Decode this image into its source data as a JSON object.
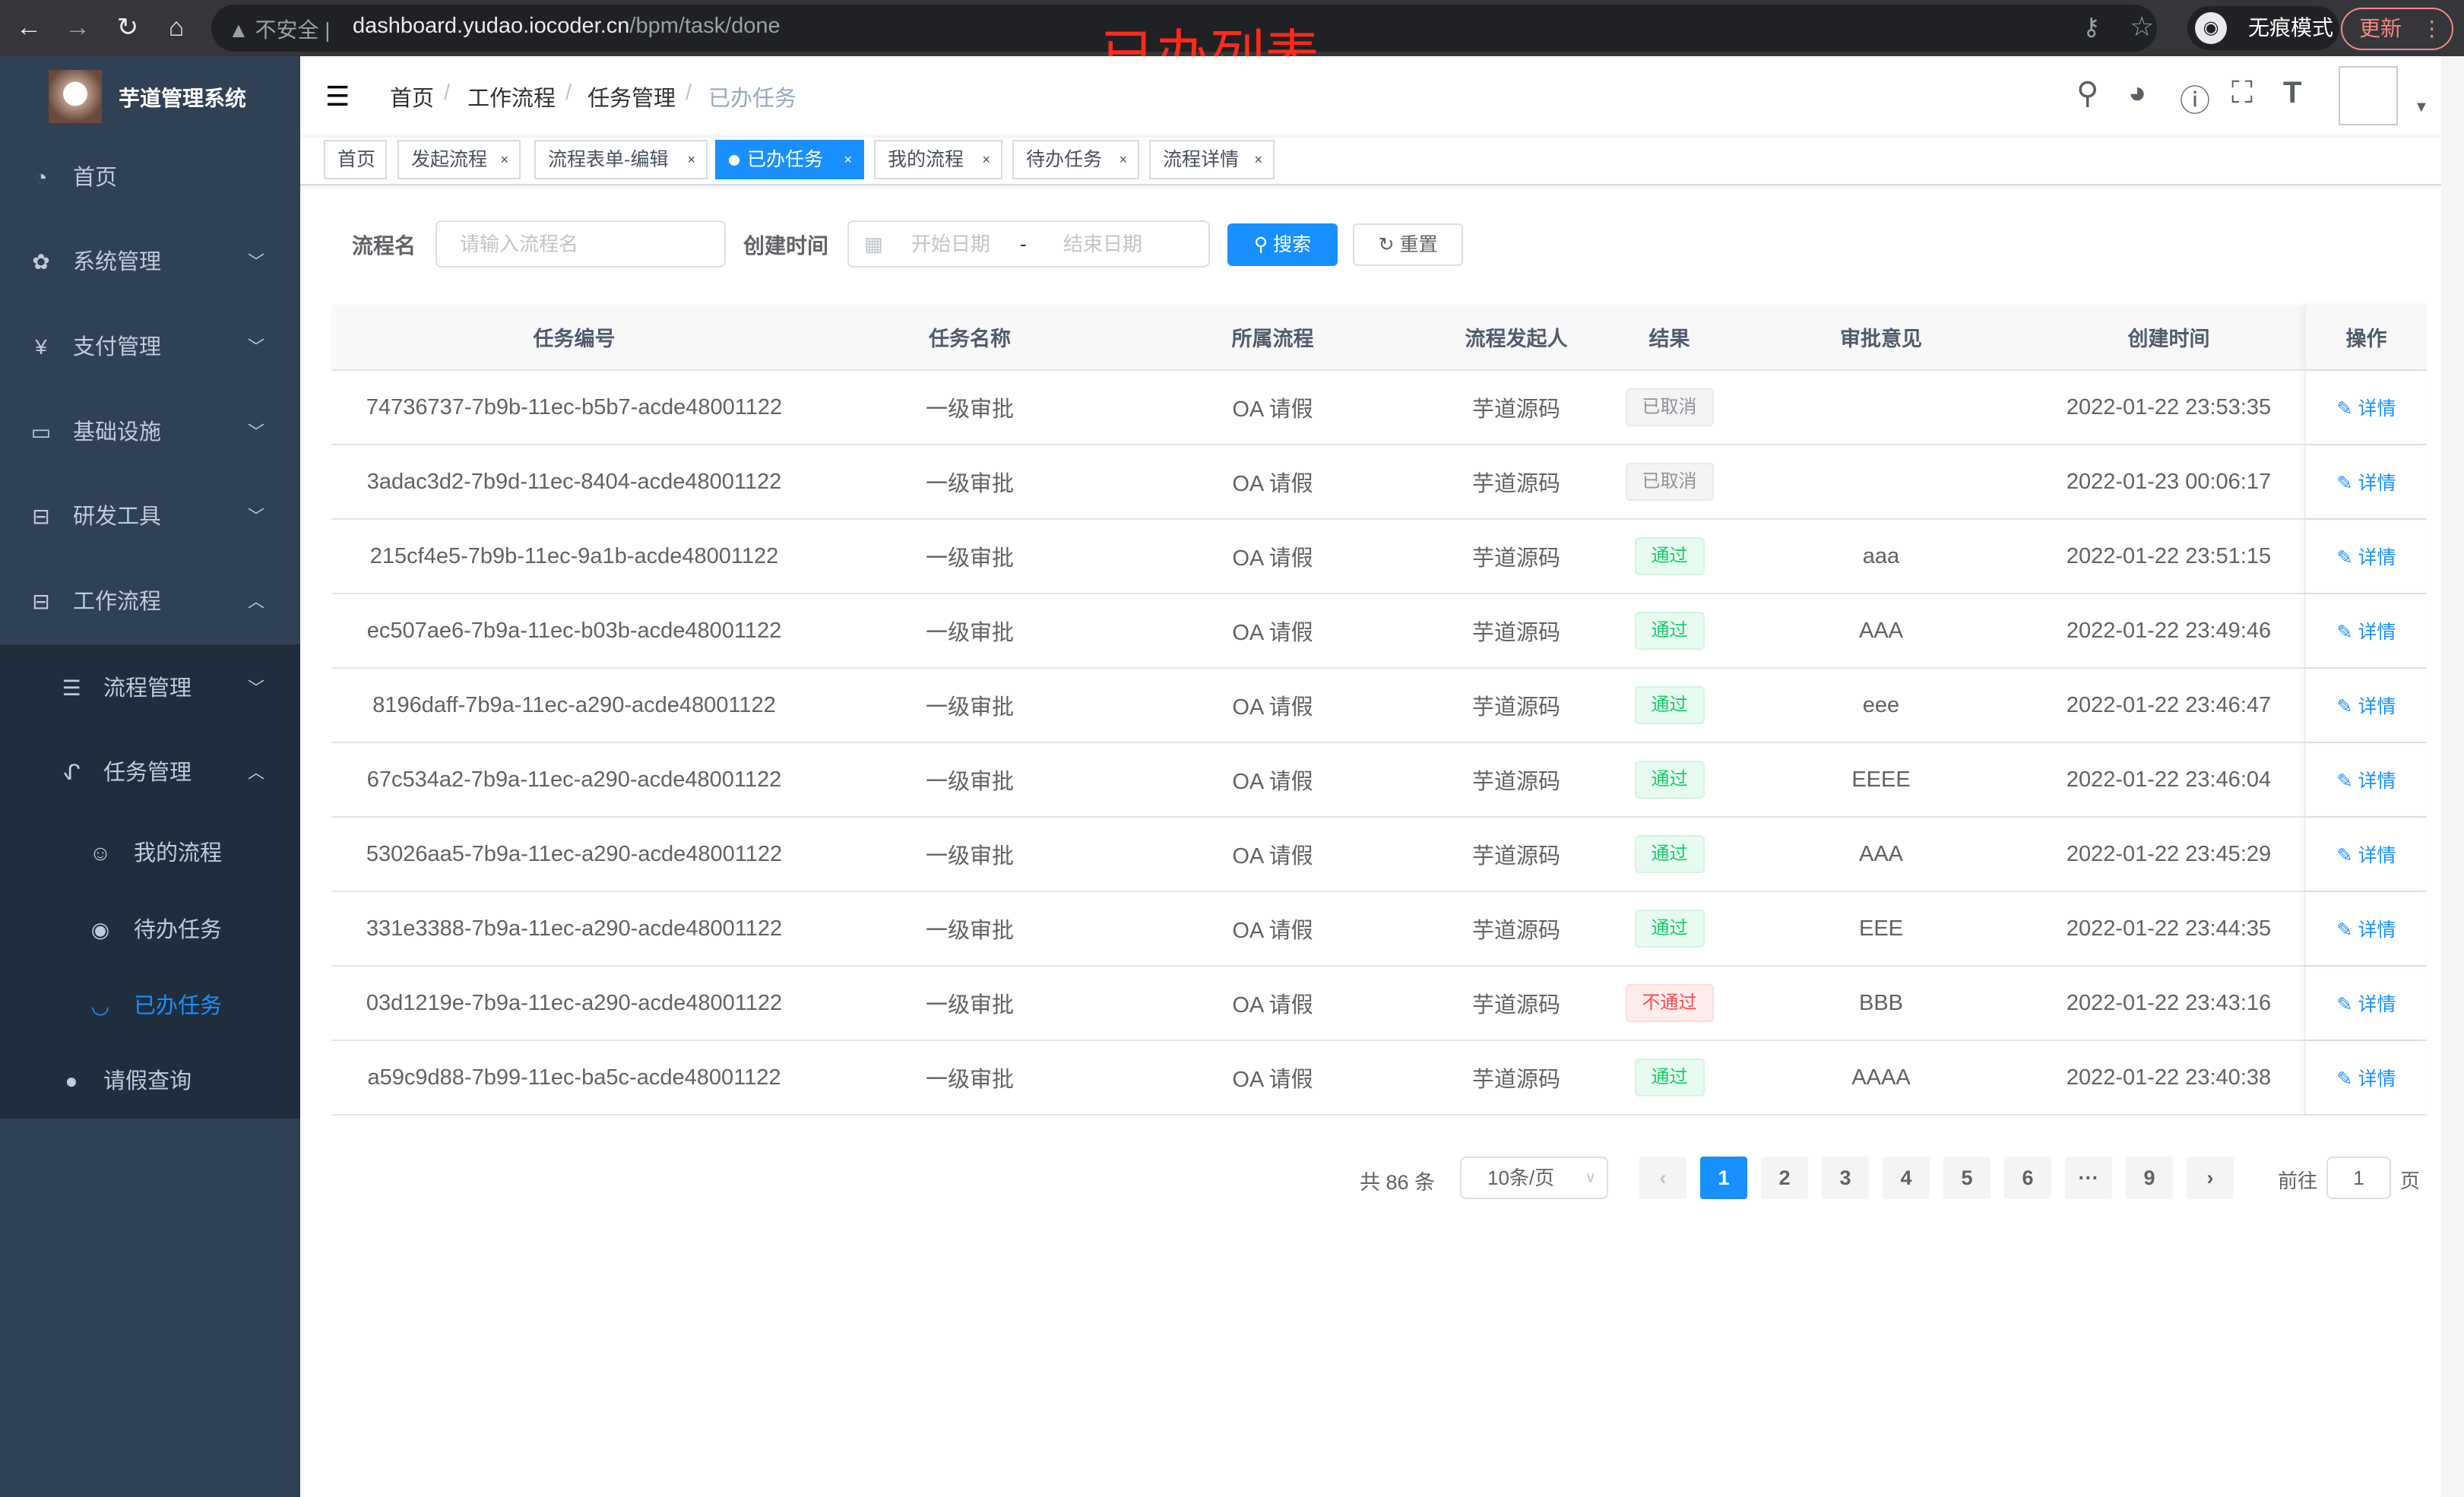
{
  "browser": {
    "insecure": "不安全",
    "url_host": "dashboard.yudao.iocoder.cn",
    "url_path": "/bpm/task/done",
    "incognito": "无痕模式",
    "update": "更新",
    "annotation_title": "已办列表"
  },
  "sidebar": {
    "brand": "芋道管理系统",
    "items": [
      {
        "label": "首页",
        "icon": "dashboard-icon"
      },
      {
        "label": "系统管理",
        "icon": "gear-icon"
      },
      {
        "label": "支付管理",
        "icon": "yen-icon"
      },
      {
        "label": "基础设施",
        "icon": "monitor-icon"
      },
      {
        "label": "研发工具",
        "icon": "toolbox-icon"
      },
      {
        "label": "工作流程",
        "icon": "toolbox-icon"
      },
      {
        "label": "流程管理",
        "icon": "list-icon"
      },
      {
        "label": "任务管理",
        "icon": "task-icon"
      },
      {
        "label": "我的流程",
        "icon": "face-icon"
      },
      {
        "label": "待办任务",
        "icon": "eye-icon"
      },
      {
        "label": "已办任务",
        "icon": "eye-closed-icon"
      },
      {
        "label": "请假查询",
        "icon": "user-icon"
      }
    ]
  },
  "breadcrumb": [
    "首页",
    "工作流程",
    "任务管理",
    "已办任务"
  ],
  "tags": [
    "首页",
    "发起流程",
    "流程表单-编辑",
    "已办任务",
    "我的流程",
    "待办任务",
    "流程详情"
  ],
  "search": {
    "name_label": "流程名",
    "name_placeholder": "请输入流程名",
    "time_label": "创建时间",
    "start_placeholder": "开始日期",
    "range_sep": "-",
    "end_placeholder": "结束日期",
    "search_btn": "搜索",
    "reset_btn": "重置"
  },
  "table": {
    "columns": [
      "任务编号",
      "任务名称",
      "所属流程",
      "流程发起人",
      "结果",
      "审批意见",
      "创建时间",
      "操作"
    ],
    "action_label": "详情",
    "rows": [
      [
        "74736737-7b9b-11ec-b5b7-acde48001122",
        "一级审批",
        "OA 请假",
        "芋道源码",
        "已取消",
        "",
        "2022-01-22 23:53:35"
      ],
      [
        "3adac3d2-7b9d-11ec-8404-acde48001122",
        "一级审批",
        "OA 请假",
        "芋道源码",
        "已取消",
        "",
        "2022-01-23 00:06:17"
      ],
      [
        "215cf4e5-7b9b-11ec-9a1b-acde48001122",
        "一级审批",
        "OA 请假",
        "芋道源码",
        "通过",
        "aaa",
        "2022-01-22 23:51:15"
      ],
      [
        "ec507ae6-7b9a-11ec-b03b-acde48001122",
        "一级审批",
        "OA 请假",
        "芋道源码",
        "通过",
        "AAA",
        "2022-01-22 23:49:46"
      ],
      [
        "8196daff-7b9a-11ec-a290-acde48001122",
        "一级审批",
        "OA 请假",
        "芋道源码",
        "通过",
        "eee",
        "2022-01-22 23:46:47"
      ],
      [
        "67c534a2-7b9a-11ec-a290-acde48001122",
        "一级审批",
        "OA 请假",
        "芋道源码",
        "通过",
        "EEEE",
        "2022-01-22 23:46:04"
      ],
      [
        "53026aa5-7b9a-11ec-a290-acde48001122",
        "一级审批",
        "OA 请假",
        "芋道源码",
        "通过",
        "AAA",
        "2022-01-22 23:45:29"
      ],
      [
        "331e3388-7b9a-11ec-a290-acde48001122",
        "一级审批",
        "OA 请假",
        "芋道源码",
        "通过",
        "EEE",
        "2022-01-22 23:44:35"
      ],
      [
        "03d1219e-7b9a-11ec-a290-acde48001122",
        "一级审批",
        "OA 请假",
        "芋道源码",
        "不通过",
        "BBB",
        "2022-01-22 23:43:16"
      ],
      [
        "a59c9d88-7b99-11ec-ba5c-acde48001122",
        "一级审批",
        "OA 请假",
        "芋道源码",
        "通过",
        "AAAA",
        "2022-01-22 23:40:38"
      ]
    ]
  },
  "result_colors": {
    "已取消": "#909399",
    "通过": "#13ce66",
    "不通过": "#ff4949"
  },
  "pagination": {
    "total": "共 86 条",
    "page_size": "10条/页",
    "pages": [
      "1",
      "2",
      "3",
      "4",
      "5",
      "6",
      "···",
      "9"
    ],
    "current": "1",
    "goto_label": "前往",
    "goto_value": "1",
    "page_suffix": "页"
  },
  "colors": {
    "accent": "#1890ff",
    "sidebar": "#304156",
    "submenu": "#1f2d3d"
  }
}
